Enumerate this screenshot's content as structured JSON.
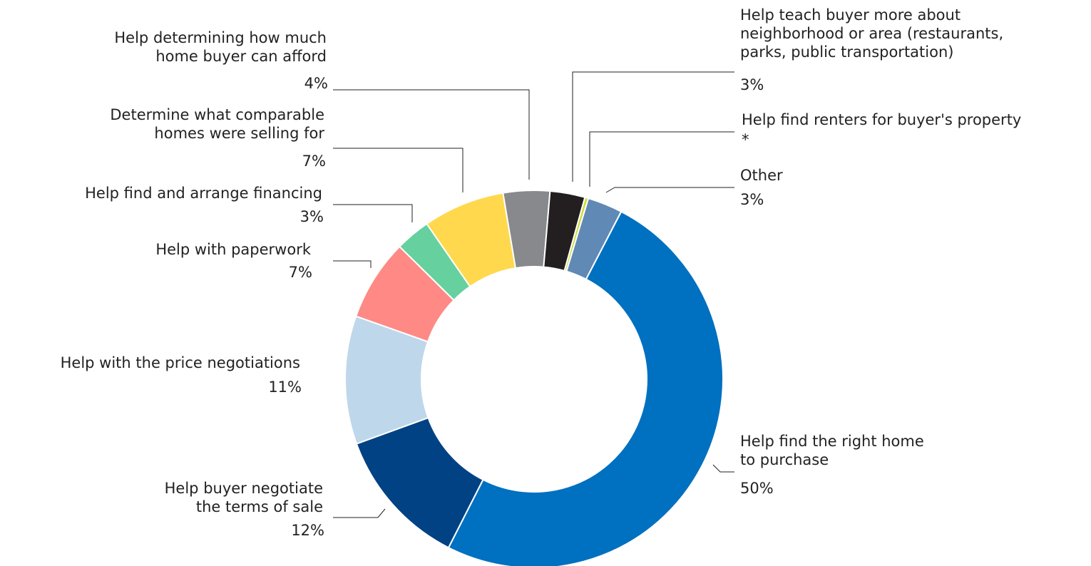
{
  "chart_data": {
    "type": "donut",
    "categories": [
      "Help determining how much\nhome buyer can afford",
      "Help teach buyer more about\nneighborhood or area (restaurants,\nparks, public transportation)",
      "Help find renters for buyer's property",
      "Other",
      "Help  find the right home\nto purchase",
      "Help buyer negotiate\nthe terms of sale",
      "Help with the price negotiations",
      "Help with paperwork",
      "Help  find and arrange    financing",
      "Determine what comparable\nhomes were selling for"
    ],
    "values": [
      4,
      3,
      0.3,
      3,
      50,
      12,
      11,
      7,
      3,
      7
    ],
    "value_labels": [
      "4%",
      "3%",
      "*",
      "3%",
      "50%",
      "12%",
      "11%",
      "7%",
      "3%",
      "7%"
    ],
    "colors": [
      "#88898c",
      "#231f20",
      "#cddc39",
      "#6089b5",
      "#0070c0",
      "#004283",
      "#bfd7eb",
      "#ff8985",
      "#66d19e",
      "#ffd84d"
    ]
  }
}
